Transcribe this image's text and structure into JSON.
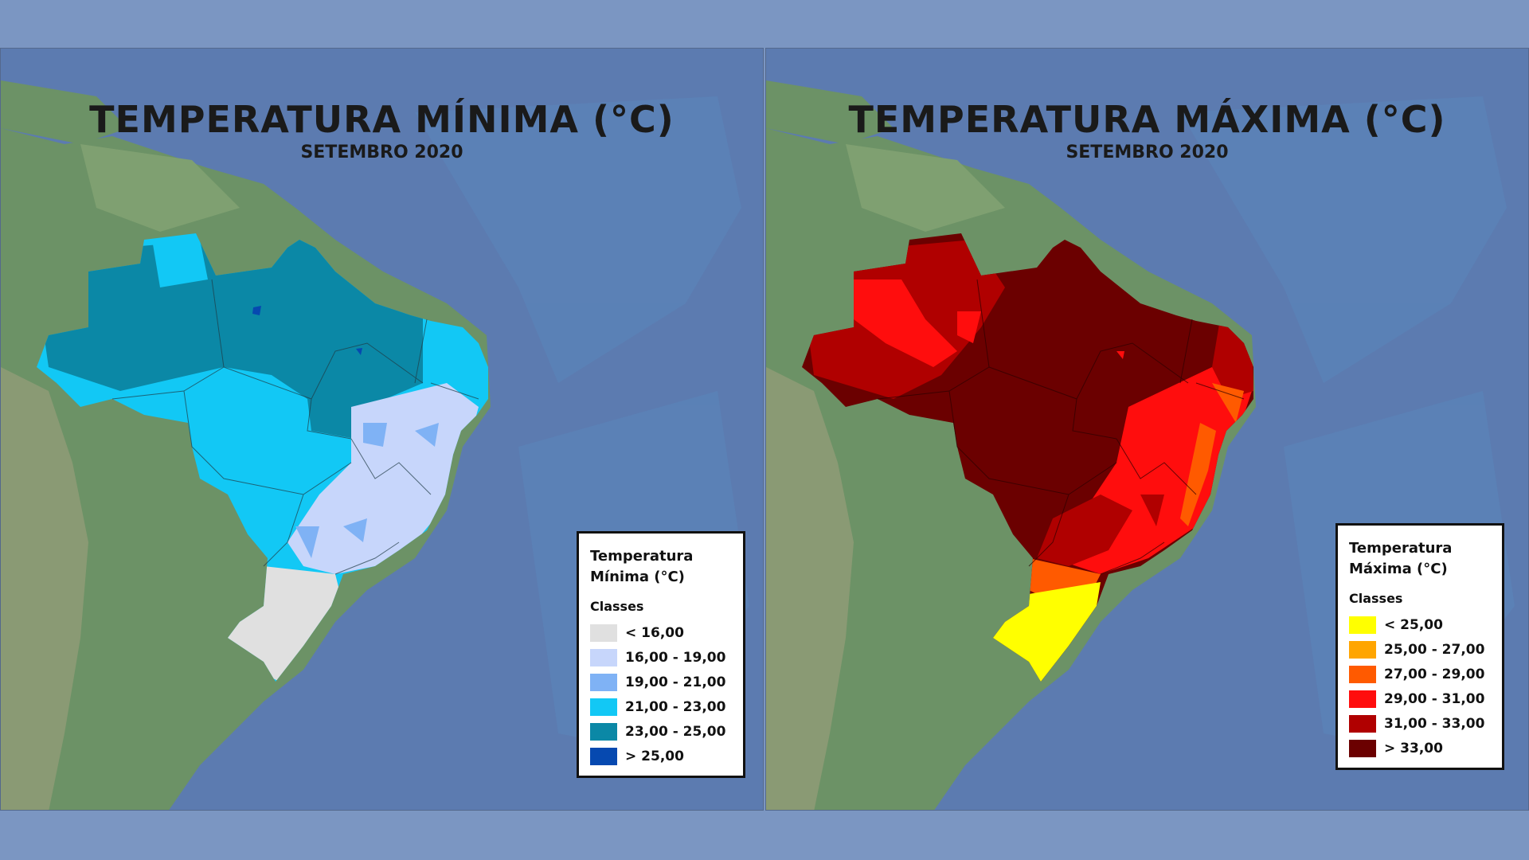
{
  "panels": [
    {
      "title": "TEMPERATURA MÍNIMA (°C)",
      "subtitle": "SETEMBRO 2020",
      "legend": {
        "title_line1": "Temperatura",
        "title_line2": "Mínima (°C)",
        "classes_label": "Classes",
        "items": [
          {
            "label": "< 16,00",
            "color": "#e0e0e0"
          },
          {
            "label": "16,00 - 19,00",
            "color": "#c7d6fb"
          },
          {
            "label": "19,00 - 21,00",
            "color": "#7fb2f5"
          },
          {
            "label": "21,00 - 23,00",
            "color": "#12c8f5"
          },
          {
            "label": "23,00 - 25,00",
            "color": "#0b88a6"
          },
          {
            "label": "> 25,00",
            "color": "#0649b0"
          }
        ]
      }
    },
    {
      "title": "TEMPERATURA MÁXIMA (°C)",
      "subtitle": "SETEMBRO 2020",
      "legend": {
        "title_line1": "Temperatura",
        "title_line2": "Máxima (°C)",
        "classes_label": "Classes",
        "items": [
          {
            "label": "< 25,00",
            "color": "#ffff00"
          },
          {
            "label": "25,00 - 27,00",
            "color": "#ffa500"
          },
          {
            "label": "27,00 - 29,00",
            "color": "#ff5a00"
          },
          {
            "label": "29,00 - 31,00",
            "color": "#ff0d0d"
          },
          {
            "label": "31,00 - 33,00",
            "color": "#b00000"
          },
          {
            "label": "> 33,00",
            "color": "#6b0000"
          }
        ]
      }
    }
  ],
  "colors": {
    "background": "#7b96c2",
    "ocean": "#5c7bb0",
    "land": "#6c9266"
  }
}
